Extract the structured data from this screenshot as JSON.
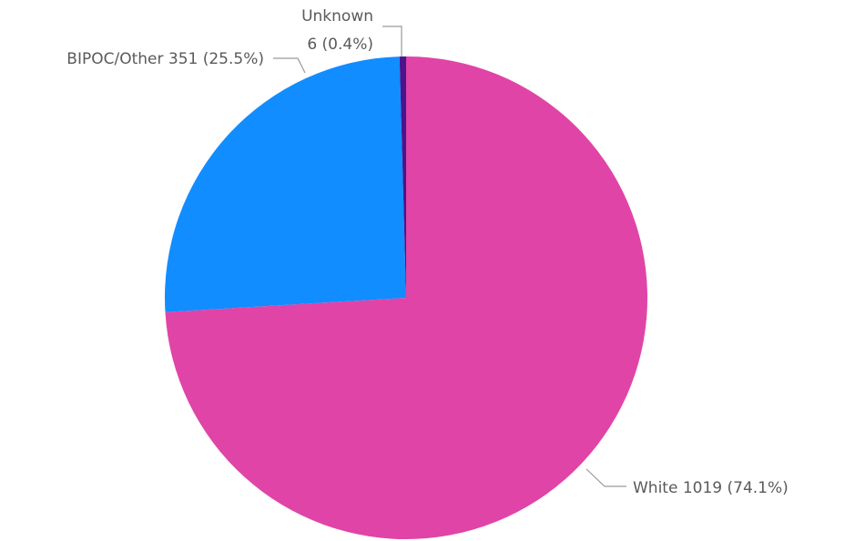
{
  "chart_data": {
    "type": "pie",
    "title": "",
    "slices": [
      {
        "label": "White",
        "value": 1019,
        "percent": "74.1%",
        "display": "White 1019 (74.1%)",
        "color": "#E044A7"
      },
      {
        "label": "BIPOC/Other",
        "value": 351,
        "percent": "25.5%",
        "display": "BIPOC/Other 351 (25.5%)",
        "color": "#118DFF"
      },
      {
        "label": "Unknown",
        "value": 6,
        "percent": "0.4%",
        "display_line1": "Unknown",
        "display_line2": "6 (0.4%)",
        "color": "#4A148C"
      }
    ],
    "legend": "none"
  }
}
